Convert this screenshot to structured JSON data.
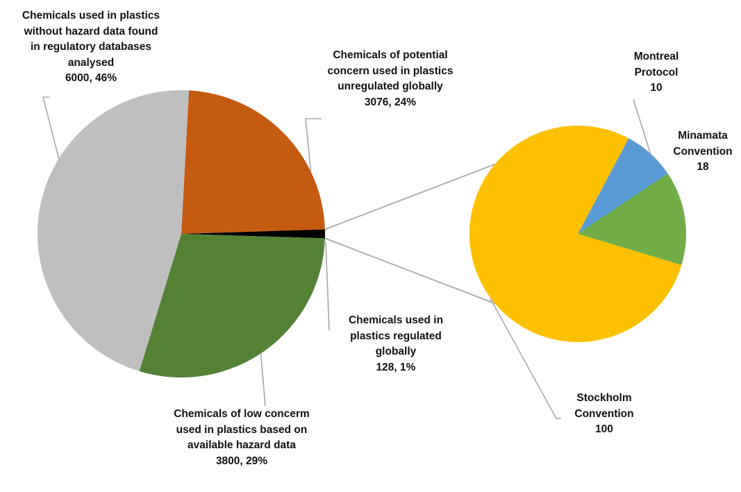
{
  "chart_data": [
    {
      "type": "pie",
      "title": "",
      "slices": [
        {
          "key": "unregulated",
          "lines": [
            "Chemicals of potential",
            "concern used in plastics",
            "unregulated globally",
            "3076, 24%"
          ],
          "value": 3076,
          "percent": 24,
          "color": "#C55A11"
        },
        {
          "key": "regulated",
          "lines": [
            "Chemicals used in",
            "plastics regulated",
            "globally",
            "128, 1%"
          ],
          "value": 128,
          "percent": 1,
          "color": "#000000"
        },
        {
          "key": "lowconcern",
          "lines": [
            "Chemicals of low concerm",
            "used in plastics based on",
            "available hazard data",
            "3800, 29%"
          ],
          "value": 3800,
          "percent": 29,
          "color": "#548235"
        },
        {
          "key": "nohazard",
          "lines": [
            "Chemicals used in plastics",
            "without hazard data found",
            "in regulatory databases",
            "analysed",
            "6000, 46%"
          ],
          "value": 6000,
          "percent": 46,
          "color": "#BFBFBF"
        }
      ]
    },
    {
      "type": "pie",
      "title": "",
      "slices": [
        {
          "key": "montreal",
          "lines": [
            "Montreal",
            "Protocol",
            "10"
          ],
          "value": 10,
          "color": "#5B9BD5"
        },
        {
          "key": "minamata",
          "lines": [
            "Minamata",
            "Convention",
            "18"
          ],
          "value": 18,
          "color": "#70AD47"
        },
        {
          "key": "stockholm",
          "lines": [
            "Stockholm",
            "Convention",
            "100"
          ],
          "value": 100,
          "color": "#FFC000"
        }
      ]
    }
  ]
}
